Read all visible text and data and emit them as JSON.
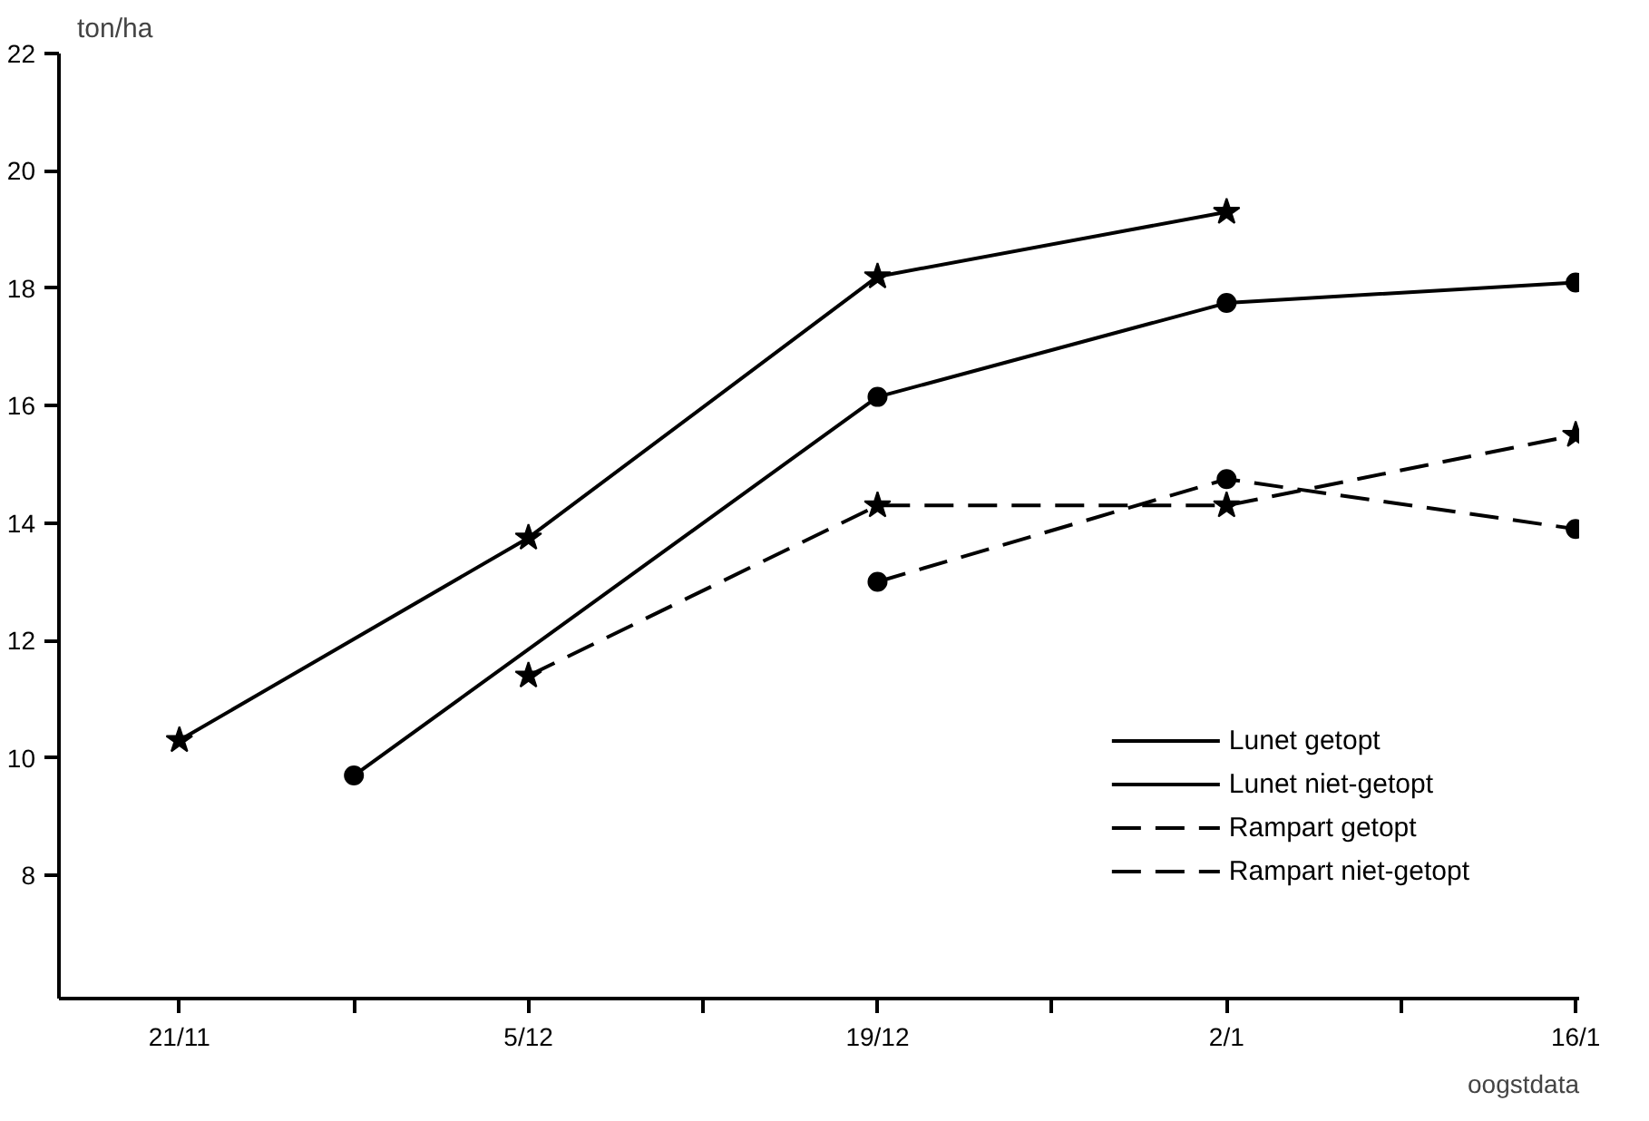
{
  "chart_data": {
    "type": "line",
    "ylabel": "ton/ha",
    "xlabel": "oogstdata",
    "categories": [
      "21/11",
      null,
      "5/12",
      null,
      "19/12",
      null,
      "2/1",
      null,
      "16/1"
    ],
    "ylim": [
      5.9,
      22
    ],
    "yticks": [
      8,
      10,
      12,
      14,
      16,
      18,
      20,
      22
    ],
    "legend": "bottom right",
    "series": [
      {
        "name": "Lunet getopt",
        "color": "#000000",
        "marker": "star",
        "line_style": "solid",
        "values": [
          10.3,
          null,
          13.75,
          null,
          18.2,
          null,
          19.3,
          null,
          null
        ]
      },
      {
        "name": "Lunet niet-getopt",
        "color": "#000000",
        "marker": "circle",
        "line_style": "solid",
        "values": [
          null,
          9.7,
          null,
          null,
          16.15,
          null,
          17.75,
          null,
          18.1
        ]
      },
      {
        "name": "Rampart getopt",
        "color": "#000000",
        "marker": "star",
        "line_style": "dashed",
        "values": [
          null,
          null,
          11.4,
          null,
          14.3,
          null,
          14.3,
          null,
          15.5
        ]
      },
      {
        "name": "Rampart niet-getopt",
        "color": "#000000",
        "marker": "circle",
        "line_style": "dashed",
        "values": [
          null,
          null,
          null,
          null,
          13.0,
          null,
          14.75,
          null,
          13.9
        ]
      }
    ]
  }
}
